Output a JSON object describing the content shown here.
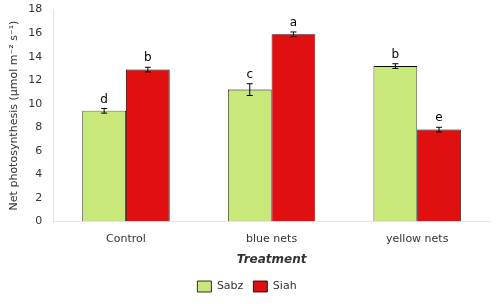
{
  "chart_data": {
    "type": "bar",
    "categories": [
      "Control",
      "blue nets",
      "yellow nets"
    ],
    "series": [
      {
        "name": "Sabz",
        "color": "#c8e87a",
        "values": [
          9.4,
          11.2,
          13.2
        ],
        "errors": [
          0.2,
          0.5,
          0.2
        ],
        "letters": [
          "d",
          "c",
          "b"
        ]
      },
      {
        "name": "Siah",
        "color": "#e01010",
        "values": [
          12.9,
          15.9,
          7.8
        ],
        "errors": [
          0.2,
          0.2,
          0.2
        ],
        "letters": [
          "b",
          "a",
          "e"
        ]
      }
    ],
    "xlabel": "Treatment",
    "ylabel": "Net photosynthesis (µmol m⁻² s⁻¹)",
    "ylim": [
      0,
      18
    ],
    "yticks": [
      0,
      2,
      4,
      6,
      8,
      10,
      12,
      14,
      16,
      18
    ],
    "grid": false,
    "legend": "bottom"
  }
}
